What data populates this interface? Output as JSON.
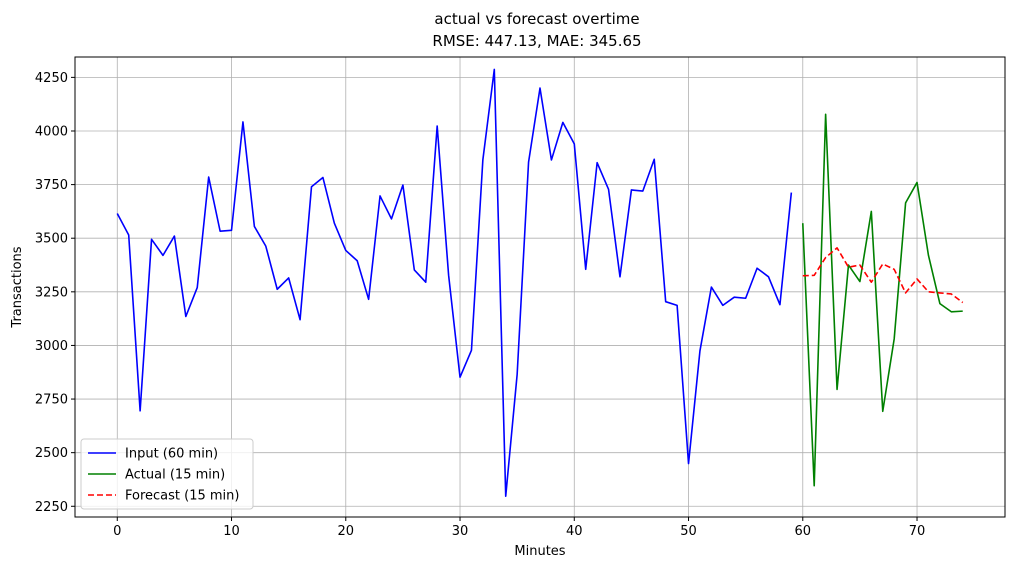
{
  "chart_data": {
    "type": "line",
    "title": "actual vs forecast overtime",
    "subtitle": "RMSE: 447.13, MAE: 345.65",
    "xlabel": "Minutes",
    "ylabel": "Transactions",
    "xlim": [
      -3.7,
      77.7
    ],
    "ylim": [
      2200,
      4345
    ],
    "xticks": [
      0,
      10,
      20,
      30,
      40,
      50,
      60,
      70
    ],
    "yticks": [
      2250,
      2500,
      2750,
      3000,
      3250,
      3500,
      3750,
      4000,
      4250
    ],
    "grid": true,
    "legend_position": "lower-left",
    "series": [
      {
        "name": "Input (60 min)",
        "color": "#0000ff",
        "style": "solid",
        "x": [
          0,
          1,
          2,
          3,
          4,
          5,
          6,
          7,
          8,
          9,
          10,
          11,
          12,
          13,
          14,
          15,
          16,
          17,
          18,
          19,
          20,
          21,
          22,
          23,
          24,
          25,
          26,
          27,
          28,
          29,
          30,
          31,
          32,
          33,
          34,
          35,
          36,
          37,
          38,
          39,
          40,
          41,
          42,
          43,
          44,
          45,
          46,
          47,
          48,
          49,
          50,
          51,
          52,
          53,
          54,
          55,
          56,
          57,
          58,
          59
        ],
        "values": [
          3615,
          3515,
          2695,
          3495,
          3420,
          3510,
          3135,
          3270,
          3785,
          3533,
          3537,
          4042,
          3555,
          3463,
          3262,
          3315,
          3120,
          3740,
          3783,
          3570,
          3443,
          3395,
          3215,
          3697,
          3590,
          3748,
          3352,
          3295,
          4023,
          3328,
          2852,
          2977,
          3866,
          4287,
          2297,
          2865,
          3855,
          4200,
          3865,
          4040,
          3940,
          3355,
          3852,
          3728,
          3320,
          3725,
          3720,
          3868,
          3204,
          3187,
          2449,
          2975,
          3272,
          3187,
          3225,
          3220,
          3360,
          3320,
          3190,
          3713
        ]
      },
      {
        "name": "Actual (15 min)",
        "color": "#008000",
        "style": "solid",
        "x": [
          60,
          61,
          62,
          63,
          64,
          65,
          66,
          67,
          68,
          69,
          70,
          71,
          72,
          73,
          74
        ],
        "values": [
          3570,
          2346,
          4078,
          2795,
          3375,
          3298,
          3625,
          2693,
          3030,
          3665,
          3760,
          3420,
          3195,
          3157,
          3160
        ]
      },
      {
        "name": "Forecast (15 min)",
        "color": "#ff0000",
        "style": "dashed",
        "x": [
          60,
          61,
          62,
          63,
          64,
          65,
          66,
          67,
          68,
          69,
          70,
          71,
          72,
          73,
          74
        ],
        "values": [
          3325,
          3327,
          3410,
          3455,
          3365,
          3375,
          3295,
          3380,
          3355,
          3245,
          3310,
          3250,
          3245,
          3240,
          3200
        ]
      }
    ]
  }
}
